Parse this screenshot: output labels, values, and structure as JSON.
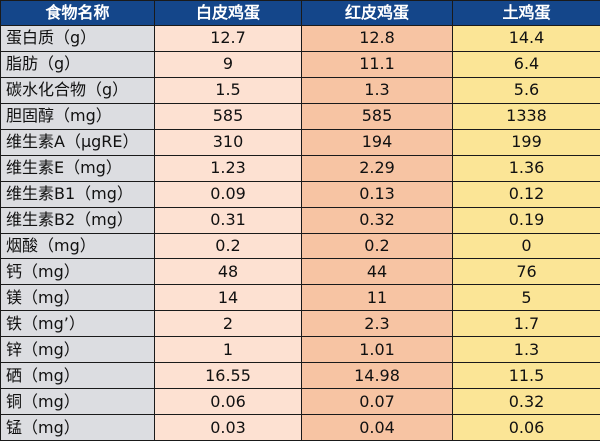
{
  "table": {
    "headers": [
      "食物名称",
      "白皮鸡蛋",
      "红皮鸡蛋",
      "土鸡蛋"
    ],
    "rows": [
      {
        "name": "蛋白质（g）",
        "white": "12.7",
        "red": "12.8",
        "local": "14.4"
      },
      {
        "name": "脂肪（g）",
        "white": "9",
        "red": "11.1",
        "local": "6.4"
      },
      {
        "name": "碳水化合物（g）",
        "white": "1.5",
        "red": "1.3",
        "local": "5.6"
      },
      {
        "name": "胆固醇（mg）",
        "white": "585",
        "red": "585",
        "local": "1338"
      },
      {
        "name": "维生素A（μgRE）",
        "white": "310",
        "red": "194",
        "local": "199"
      },
      {
        "name": "维生素E（mg）",
        "white": "1.23",
        "red": "2.29",
        "local": "1.36"
      },
      {
        "name": "维生素B1（mg）",
        "white": "0.09",
        "red": "0.13",
        "local": "0.12"
      },
      {
        "name": "维生素B2（mg）",
        "white": "0.31",
        "red": "0.32",
        "local": "0.19"
      },
      {
        "name": "烟酸（mg）",
        "white": "0.2",
        "red": "0.2",
        "local": "0"
      },
      {
        "name": "钙（mg）",
        "white": "48",
        "red": "44",
        "local": "76"
      },
      {
        "name": "镁（mg）",
        "white": "14",
        "red": "11",
        "local": "5"
      },
      {
        "name": "铁（mg’）",
        "white": "2",
        "red": "2.3",
        "local": "1.7"
      },
      {
        "name": "锌（mg）",
        "white": "1",
        "red": "1.01",
        "local": "1.3"
      },
      {
        "name": "硒（mg）",
        "white": "16.55",
        "red": "14.98",
        "local": "11.5"
      },
      {
        "name": "铜（mg）",
        "white": "0.06",
        "red": "0.07",
        "local": "0.32"
      },
      {
        "name": "锰（mg）",
        "white": "0.03",
        "red": "0.04",
        "local": "0.06"
      }
    ]
  }
}
